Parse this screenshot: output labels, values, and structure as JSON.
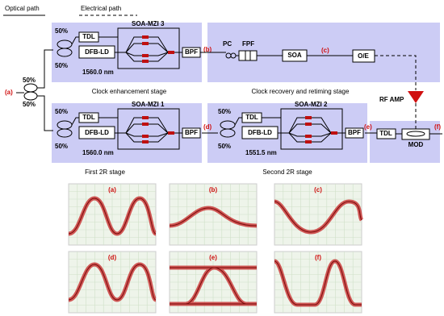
{
  "legend": {
    "optical": "Optical path",
    "electrical": "Electrical path"
  },
  "input": {
    "label": "(a)",
    "splits": [
      "50%",
      "50%"
    ]
  },
  "stages": [
    {
      "name": "Clock enhancement stage",
      "mzi": "SOA-MZI 3",
      "tdl": "TDL",
      "laser": "DFB-LD",
      "couplers": [
        "50%",
        "50%"
      ],
      "wavelength": "1560.0 nm",
      "filter": "BPF",
      "output_label": "(b)"
    },
    {
      "name": "Clock recovery and retiming stage",
      "pc": "PC",
      "fpf": "FPF",
      "soa": "SOA",
      "mid_label": "(c)",
      "oe": "O/E",
      "amp": "RF AMP"
    },
    {
      "name": "First 2R stage",
      "mzi": "SOA-MZI 1",
      "tdl": "TDL",
      "laser": "DFB-LD",
      "couplers": [
        "50%",
        "50%"
      ],
      "wavelength": "1560.0 nm",
      "filter": "BPF",
      "output_label": "(d)"
    },
    {
      "name": "Second 2R stage",
      "mzi": "SOA-MZI 2",
      "tdl": "TDL",
      "laser": "DFB-LD",
      "couplers": [
        "50%",
        "50%"
      ],
      "wavelength": "1551.5 nm",
      "filter": "BPF",
      "output_label": "(e)"
    }
  ],
  "output": {
    "tdl": "TDL",
    "mod": "MOD",
    "label": "(f)"
  },
  "eyes": [
    "(a)",
    "(b)",
    "(c)",
    "(d)",
    "(e)",
    "(f)"
  ]
}
